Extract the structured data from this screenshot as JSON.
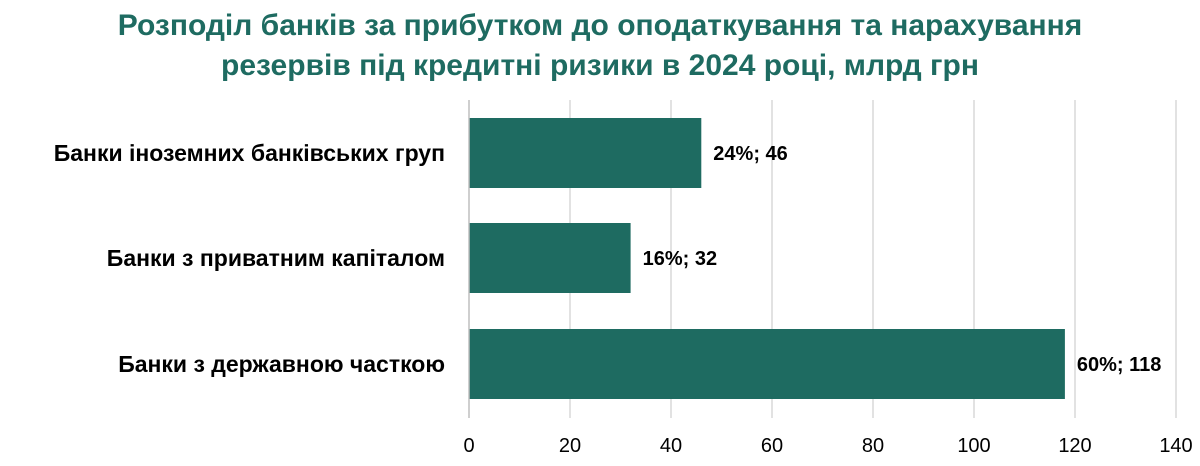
{
  "chart_data": {
    "type": "bar",
    "orientation": "horizontal",
    "title_lines": [
      "Розподіл банків за прибутком до оподаткування та нарахування",
      "резервів під кредитні ризики в 2024 році, млрд грн"
    ],
    "categories": [
      "Банки іноземних банківських груп",
      "Банки з приватним капіталом",
      "Банки з державною часткою"
    ],
    "values": [
      46,
      32,
      118
    ],
    "data_labels": [
      "24%; 46",
      "16%; 32",
      "60%; 118"
    ],
    "xlim": [
      0,
      140
    ],
    "x_ticks": [
      "0",
      "20",
      "40",
      "60",
      "80",
      "100",
      "120",
      "140"
    ],
    "grid": true,
    "bar_color": "#1e6b61",
    "title_color": "#1e6b61",
    "grid_color": "#d9d9d9",
    "axis_color": "#bfbfbf"
  }
}
